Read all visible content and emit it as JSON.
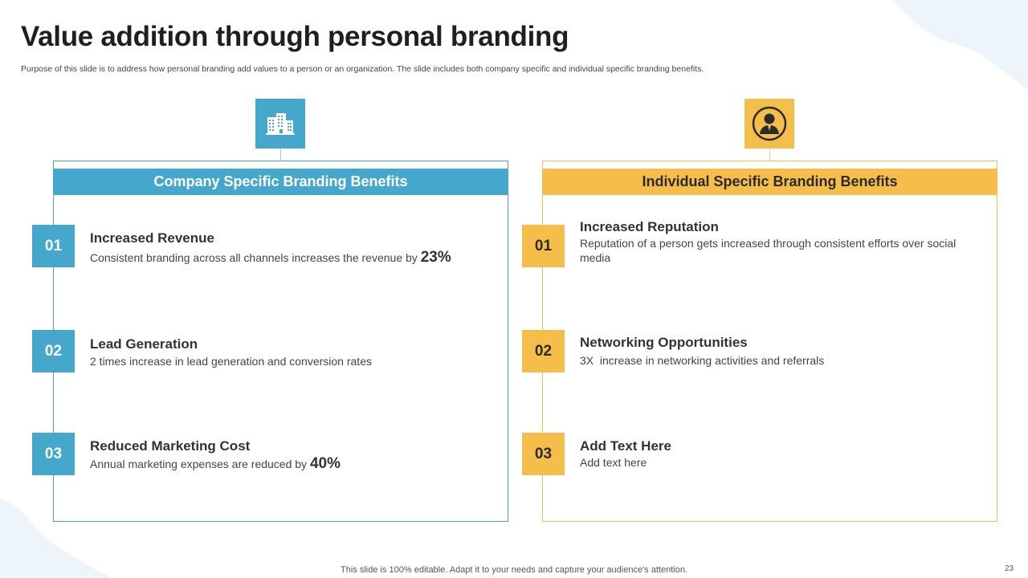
{
  "slide": {
    "title": "Value addition through personal branding",
    "subtitle": "Purpose of this slide is to address how personal branding add values to a person or an organization. The slide includes both company specific and individual specific branding benefits.",
    "footer": "This slide is 100% editable. Adapt it to your needs and capture your audience's attention.",
    "page_number": "23"
  },
  "colors": {
    "blue": "#45a7cc",
    "yellow": "#f5be4a"
  },
  "company": {
    "icon": "office-building-icon",
    "header": "Company Specific Branding Benefits",
    "items": [
      {
        "num": "01",
        "title": "Increased Revenue",
        "desc": "Consistent branding across all channels increases the revenue by",
        "highlight": "23%"
      },
      {
        "num": "02",
        "title": "Lead Generation",
        "desc": "2 times increase in lead generation and conversion rates"
      },
      {
        "num": "03",
        "title": "Reduced Marketing Cost",
        "desc": "Annual marketing expenses are reduced by",
        "highlight": "40%"
      }
    ]
  },
  "individual": {
    "icon": "businessman-icon",
    "header": "Individual Specific Branding Benefits",
    "items": [
      {
        "num": "01",
        "title": "Increased Reputation",
        "desc": "Reputation of a person gets increased through consistent efforts over social media"
      },
      {
        "num": "02",
        "title": "Networking Opportunities",
        "desc": "3X  increase in networking activities and referrals"
      },
      {
        "num": "03",
        "title": "Add Text Here",
        "desc": "Add text here"
      }
    ]
  }
}
